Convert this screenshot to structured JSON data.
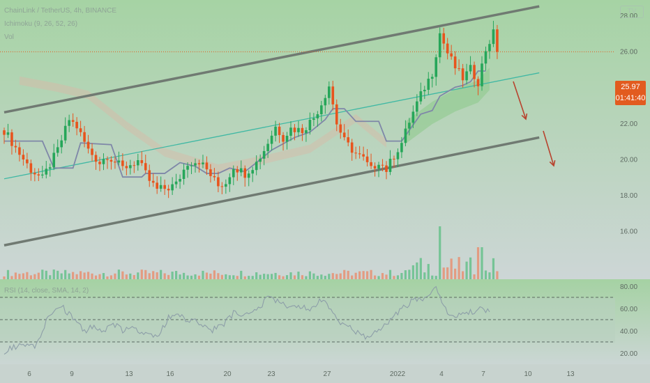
{
  "header": {
    "symbol_line": "ChainLink / TetherUS, 4h, BINANCE",
    "indicator_1": "Ichimoku (9, 26, 52, 26)",
    "indicator_2": "Vol",
    "logo_text": "TV"
  },
  "price_tag": {
    "price": "25.97",
    "countdown": "01:41:40",
    "color": "#e25b1f"
  },
  "colors": {
    "background_top": "#a6d3a4",
    "background_bottom": "#cdd6d6",
    "up_candle": "#26a659",
    "down_candle": "#e8541d",
    "channel_line": "#707a72",
    "midline": "#3fb8a4",
    "kijun": "#7f87a8",
    "arrow": "#b8432e"
  },
  "chart_data": [
    {
      "type": "candlestick",
      "title": "ChainLink / TetherUS, 4h, BINANCE",
      "y_axis": {
        "ticks": [
          "28.00",
          "26.00",
          "24.00",
          "22.00",
          "20.00",
          "18.00",
          "16.00"
        ],
        "ylim": [
          15.2,
          28.6
        ]
      },
      "x_axis": {
        "ticks": [
          "6",
          "9",
          "13",
          "16",
          "20",
          "23",
          "27",
          "2022",
          "4",
          "7",
          "10",
          "13"
        ]
      },
      "last_price": 25.97,
      "close_path": [
        [
          0,
          21.6
        ],
        [
          4,
          20.3
        ],
        [
          7,
          19.4
        ],
        [
          10,
          18.9
        ],
        [
          14,
          20.5
        ],
        [
          17,
          22.2
        ],
        [
          19,
          21.8
        ],
        [
          22,
          20.5
        ],
        [
          25,
          19.8
        ],
        [
          27,
          20.2
        ],
        [
          31,
          19.5
        ],
        [
          35,
          19.9
        ],
        [
          38,
          18.8
        ],
        [
          40,
          18.3
        ],
        [
          43,
          18.4
        ],
        [
          45,
          18.6
        ],
        [
          48,
          19.8
        ],
        [
          51,
          19.9
        ],
        [
          53,
          19.4
        ],
        [
          56,
          18.5
        ],
        [
          58,
          18.7
        ],
        [
          60,
          19.6
        ],
        [
          63,
          19.2
        ],
        [
          66,
          19.8
        ],
        [
          68,
          20.5
        ],
        [
          71,
          21.8
        ],
        [
          73,
          21.2
        ],
        [
          75,
          21.7
        ],
        [
          78,
          21.6
        ],
        [
          81,
          22.3
        ],
        [
          83,
          23.1
        ],
        [
          85,
          24.1
        ],
        [
          87,
          22.0
        ],
        [
          89,
          21.0
        ],
        [
          92,
          20.3
        ],
        [
          94,
          20.0
        ],
        [
          96,
          19.4
        ],
        [
          98,
          19.9
        ],
        [
          100,
          19.4
        ],
        [
          102,
          20.2
        ],
        [
          104,
          20.9
        ],
        [
          106,
          22.1
        ],
        [
          108,
          23.1
        ],
        [
          110,
          24.0
        ],
        [
          112,
          24.8
        ],
        [
          114,
          27.0
        ],
        [
          116,
          25.9
        ],
        [
          118,
          25.1
        ],
        [
          120,
          24.5
        ],
        [
          122,
          25.0
        ],
        [
          124,
          24.3
        ],
        [
          126,
          26.1
        ],
        [
          128,
          27.0
        ],
        [
          129,
          25.97
        ]
      ],
      "series": [
        {
          "name": "Ichimoku (9, 26, 52, 26)",
          "kijun_path": [
            [
              0,
              21.0
            ],
            [
              10,
              21.0
            ],
            [
              13,
              19.5
            ],
            [
              18,
              19.5
            ],
            [
              20,
              20.9
            ],
            [
              28,
              20.8
            ],
            [
              31,
              19.0
            ],
            [
              36,
              19.0
            ],
            [
              37,
              19.2
            ],
            [
              42,
              19.2
            ],
            [
              46,
              19.8
            ],
            [
              50,
              19.6
            ],
            [
              53,
              19.2
            ],
            [
              56,
              19.2
            ],
            [
              59,
              19.5
            ],
            [
              63,
              19.3
            ],
            [
              66,
              19.8
            ],
            [
              70,
              20.5
            ],
            [
              76,
              21.2
            ],
            [
              80,
              21.5
            ],
            [
              84,
              22.2
            ],
            [
              86,
              22.8
            ],
            [
              89,
              22.8
            ],
            [
              92,
              22.1
            ],
            [
              95,
              22.1
            ],
            [
              98,
              22.1
            ],
            [
              100,
              21.0
            ],
            [
              104,
              21.0
            ],
            [
              106,
              21.6
            ],
            [
              109,
              22.5
            ],
            [
              112,
              22.7
            ],
            [
              114,
              23.5
            ],
            [
              118,
              24.0
            ],
            [
              120,
              24.1
            ],
            [
              122,
              24.3
            ],
            [
              124,
              24.9
            ],
            [
              126,
              24.9
            ]
          ]
        },
        {
          "name": "Vol",
          "peak_index": 114
        }
      ],
      "channel": {
        "upper": [
          [
            0,
            22.6
          ],
          [
            140,
            28.5
          ]
        ],
        "lower": [
          [
            0,
            15.2
          ],
          [
            140,
            21.2
          ]
        ],
        "midline": [
          [
            0,
            18.9
          ],
          [
            140,
            24.8
          ]
        ]
      },
      "cloud_future": [
        [
          105,
          21.7
        ],
        [
          112,
          22.8
        ],
        [
          118,
          23.5
        ],
        [
          124,
          24.0
        ],
        [
          127,
          24.7
        ]
      ]
    },
    {
      "type": "line",
      "title": "RSI (14, close, SMA, 14, 2)",
      "y_axis": {
        "ticks": [
          "80.00",
          "60.00",
          "40.00",
          "20.00"
        ],
        "ylim": [
          16,
          84
        ]
      },
      "levels": [
        70,
        50,
        30
      ],
      "series": [
        {
          "name": "RSI (14, close, SMA, 14, 2)",
          "values": [
            [
              0,
              22
            ],
            [
              4,
              27
            ],
            [
              8,
              26
            ],
            [
              12,
              55
            ],
            [
              15,
              62
            ],
            [
              18,
              52
            ],
            [
              21,
              40
            ],
            [
              23,
              44
            ],
            [
              26,
              39
            ],
            [
              28,
              48
            ],
            [
              31,
              40
            ],
            [
              34,
              42
            ],
            [
              37,
              36
            ],
            [
              40,
              33
            ],
            [
              43,
              52
            ],
            [
              46,
              54
            ],
            [
              48,
              50
            ],
            [
              51,
              48
            ],
            [
              54,
              40
            ],
            [
              57,
              44
            ],
            [
              60,
              56
            ],
            [
              63,
              54
            ],
            [
              66,
              58
            ],
            [
              69,
              70
            ],
            [
              72,
              66
            ],
            [
              75,
              60
            ],
            [
              78,
              61
            ],
            [
              81,
              60
            ],
            [
              83,
              68
            ],
            [
              86,
              56
            ],
            [
              88,
              48
            ],
            [
              90,
              43
            ],
            [
              93,
              38
            ],
            [
              95,
              33
            ],
            [
              97,
              38
            ],
            [
              99,
              45
            ],
            [
              101,
              48
            ],
            [
              103,
              56
            ],
            [
              105,
              62
            ],
            [
              107,
              68
            ],
            [
              110,
              70
            ],
            [
              113,
              80
            ],
            [
              116,
              55
            ],
            [
              118,
              53
            ],
            [
              121,
              55
            ],
            [
              124,
              60
            ],
            [
              127,
              58
            ]
          ]
        }
      ]
    }
  ]
}
